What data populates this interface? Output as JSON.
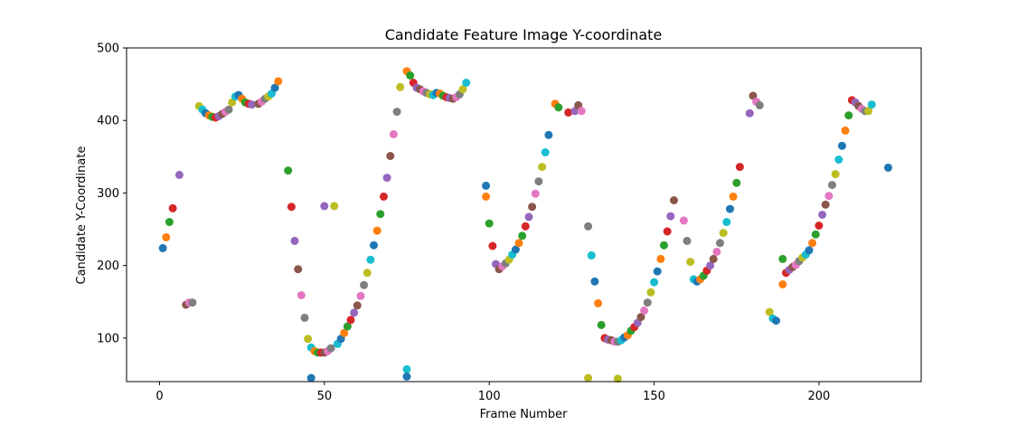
{
  "chart_data": {
    "type": "scatter",
    "title": "Candidate Feature Image Y-coordinate",
    "xlabel": "Frame Number",
    "ylabel": "Candidate Y-Coordinate",
    "xlim": [
      -10,
      231
    ],
    "ylim": [
      40,
      500
    ],
    "xticks": [
      0,
      50,
      100,
      150,
      200
    ],
    "yticks": [
      100,
      200,
      300,
      400,
      500
    ],
    "grid": false,
    "color_cycle": [
      "#1f77b4",
      "#ff7f0e",
      "#2ca02c",
      "#d62728",
      "#9467bd",
      "#8c564b",
      "#e377c2",
      "#7f7f7f",
      "#bcbd22",
      "#17becf"
    ],
    "points": [
      [
        1,
        224
      ],
      [
        2,
        239
      ],
      [
        3,
        260
      ],
      [
        4,
        279
      ],
      [
        6,
        325
      ],
      [
        8,
        146
      ],
      [
        9,
        149
      ],
      [
        10,
        149
      ],
      [
        12,
        420
      ],
      [
        13,
        415
      ],
      [
        14,
        410
      ],
      [
        15,
        407
      ],
      [
        16,
        405
      ],
      [
        17,
        404
      ],
      [
        18,
        406
      ],
      [
        19,
        409
      ],
      [
        20,
        412
      ],
      [
        21,
        415
      ],
      [
        22,
        425
      ],
      [
        23,
        433
      ],
      [
        24,
        435
      ],
      [
        25,
        430
      ],
      [
        26,
        425
      ],
      [
        27,
        423
      ],
      [
        28,
        422
      ],
      [
        30,
        423
      ],
      [
        31,
        426
      ],
      [
        32,
        430
      ],
      [
        33,
        433
      ],
      [
        34,
        437
      ],
      [
        35,
        445
      ],
      [
        36,
        454
      ],
      [
        39,
        331
      ],
      [
        40,
        281
      ],
      [
        41,
        234
      ],
      [
        42,
        195
      ],
      [
        43,
        159
      ],
      [
        44,
        128
      ],
      [
        45,
        99
      ],
      [
        46,
        87
      ],
      [
        46,
        45
      ],
      [
        47,
        82
      ],
      [
        48,
        80
      ],
      [
        49,
        80
      ],
      [
        50,
        282
      ],
      [
        50,
        80
      ],
      [
        51,
        82
      ],
      [
        52,
        86
      ],
      [
        53,
        282
      ],
      [
        54,
        92
      ],
      [
        55,
        99
      ],
      [
        56,
        107
      ],
      [
        57,
        116
      ],
      [
        58,
        125
      ],
      [
        59,
        135
      ],
      [
        60,
        145
      ],
      [
        61,
        158
      ],
      [
        62,
        173
      ],
      [
        63,
        190
      ],
      [
        64,
        208
      ],
      [
        65,
        228
      ],
      [
        66,
        248
      ],
      [
        67,
        271
      ],
      [
        68,
        295
      ],
      [
        69,
        321
      ],
      [
        70,
        351
      ],
      [
        71,
        381
      ],
      [
        72,
        412
      ],
      [
        73,
        446
      ],
      [
        75,
        57
      ],
      [
        75,
        47
      ],
      [
        75,
        468
      ],
      [
        76,
        462
      ],
      [
        77,
        452
      ],
      [
        78,
        445
      ],
      [
        79,
        443
      ],
      [
        80,
        440
      ],
      [
        81,
        438
      ],
      [
        82,
        436
      ],
      [
        83,
        435
      ],
      [
        84,
        438
      ],
      [
        85,
        437
      ],
      [
        86,
        434
      ],
      [
        87,
        432
      ],
      [
        88,
        431
      ],
      [
        89,
        430
      ],
      [
        90,
        432
      ],
      [
        91,
        436
      ],
      [
        92,
        443
      ],
      [
        93,
        452
      ],
      [
        99,
        310
      ],
      [
        99,
        295
      ],
      [
        100,
        258
      ],
      [
        101,
        227
      ],
      [
        102,
        202
      ],
      [
        103,
        195
      ],
      [
        104,
        199
      ],
      [
        105,
        203
      ],
      [
        106,
        208
      ],
      [
        107,
        215
      ],
      [
        108,
        222
      ],
      [
        109,
        231
      ],
      [
        110,
        241
      ],
      [
        111,
        254
      ],
      [
        112,
        267
      ],
      [
        113,
        281
      ],
      [
        114,
        299
      ],
      [
        115,
        316
      ],
      [
        116,
        336
      ],
      [
        117,
        356
      ],
      [
        118,
        380
      ],
      [
        120,
        423
      ],
      [
        121,
        418
      ],
      [
        124,
        411
      ],
      [
        126,
        413
      ],
      [
        127,
        421
      ],
      [
        128,
        413
      ],
      [
        130,
        254
      ],
      [
        130,
        45
      ],
      [
        131,
        214
      ],
      [
        132,
        178
      ],
      [
        133,
        148
      ],
      [
        134,
        118
      ],
      [
        135,
        100
      ],
      [
        136,
        98
      ],
      [
        137,
        97
      ],
      [
        138,
        95
      ],
      [
        139,
        95
      ],
      [
        139,
        44
      ],
      [
        140,
        97
      ],
      [
        141,
        101
      ],
      [
        142,
        104
      ],
      [
        143,
        110
      ],
      [
        144,
        115
      ],
      [
        145,
        121
      ],
      [
        146,
        129
      ],
      [
        147,
        138
      ],
      [
        148,
        149
      ],
      [
        149,
        163
      ],
      [
        150,
        177
      ],
      [
        151,
        192
      ],
      [
        152,
        209
      ],
      [
        153,
        228
      ],
      [
        154,
        247
      ],
      [
        155,
        268
      ],
      [
        156,
        290
      ],
      [
        159,
        262
      ],
      [
        160,
        234
      ],
      [
        161,
        205
      ],
      [
        162,
        181
      ],
      [
        163,
        178
      ],
      [
        164,
        181
      ],
      [
        165,
        186
      ],
      [
        166,
        193
      ],
      [
        167,
        200
      ],
      [
        168,
        209
      ],
      [
        169,
        219
      ],
      [
        170,
        231
      ],
      [
        171,
        245
      ],
      [
        172,
        260
      ],
      [
        173,
        278
      ],
      [
        174,
        295
      ],
      [
        175,
        314
      ],
      [
        176,
        336
      ],
      [
        179,
        410
      ],
      [
        180,
        434
      ],
      [
        181,
        426
      ],
      [
        182,
        421
      ],
      [
        185,
        136
      ],
      [
        186,
        127
      ],
      [
        187,
        124
      ],
      [
        189,
        174
      ],
      [
        189,
        209
      ],
      [
        190,
        190
      ],
      [
        191,
        194
      ],
      [
        192,
        198
      ],
      [
        193,
        201
      ],
      [
        194,
        206
      ],
      [
        195,
        211
      ],
      [
        196,
        215
      ],
      [
        197,
        221
      ],
      [
        198,
        231
      ],
      [
        199,
        243
      ],
      [
        200,
        255
      ],
      [
        201,
        270
      ],
      [
        202,
        284
      ],
      [
        203,
        296
      ],
      [
        204,
        311
      ],
      [
        205,
        326
      ],
      [
        206,
        346
      ],
      [
        207,
        365
      ],
      [
        208,
        386
      ],
      [
        209,
        407
      ],
      [
        210,
        428
      ],
      [
        211,
        425
      ],
      [
        212,
        420
      ],
      [
        213,
        416
      ],
      [
        214,
        413
      ],
      [
        215,
        413
      ],
      [
        216,
        422
      ],
      [
        221,
        335
      ]
    ]
  }
}
